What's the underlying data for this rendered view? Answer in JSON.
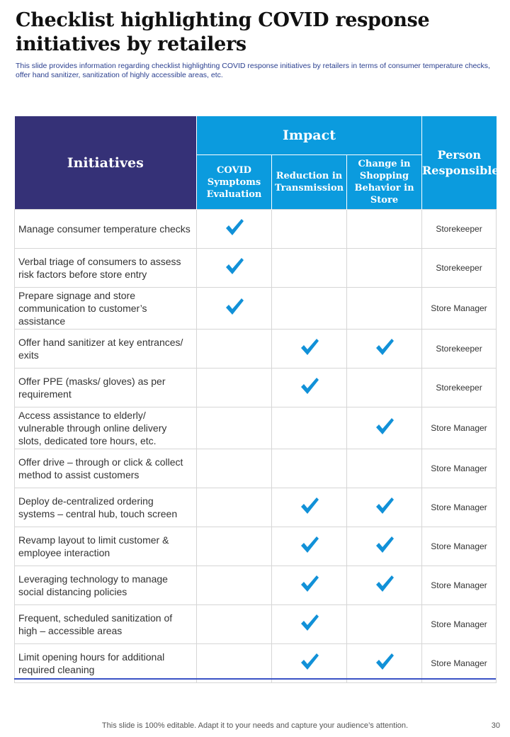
{
  "header": {
    "title": "Checklist highlighting COVID response initiatives by retailers",
    "subtitle": "This slide provides information regarding checklist highlighting COVID response initiatives by retailers in terms of consumer temperature checks, offer hand sanitizer, sanitization of highly accessible areas, etc."
  },
  "table": {
    "initiatives_header": "Initiatives",
    "impact_header": "Impact",
    "person_header": "Person Responsible",
    "impact_columns": [
      "COVID Symptoms Evaluation",
      "Reduction in Transmission",
      "Change in Shopping Behavior in Store"
    ],
    "rows": [
      {
        "initiative": "Manage consumer temperature checks",
        "checks": [
          true,
          false,
          false
        ],
        "person": "Storekeeper"
      },
      {
        "initiative": "Verbal triage of consumers to assess risk factors before store entry",
        "checks": [
          true,
          false,
          false
        ],
        "person": "Storekeeper"
      },
      {
        "initiative": "Prepare signage and store communication to customer’s assistance",
        "checks": [
          true,
          false,
          false
        ],
        "person": "Store Manager"
      },
      {
        "initiative": "Offer hand sanitizer at key entrances/ exits",
        "checks": [
          false,
          true,
          true
        ],
        "person": "Storekeeper"
      },
      {
        "initiative": "Offer PPE (masks/ gloves) as per requirement",
        "checks": [
          false,
          true,
          false
        ],
        "person": "Storekeeper"
      },
      {
        "initiative": "Access assistance to elderly/ vulnerable through online delivery slots, dedicated tore hours, etc.",
        "checks": [
          false,
          false,
          true
        ],
        "person": "Store Manager"
      },
      {
        "initiative": "Offer drive – through or click & collect method to assist customers",
        "checks": [
          false,
          false,
          false
        ],
        "person": "Store Manager"
      },
      {
        "initiative": "Deploy de-centralized ordering systems – central hub, touch screen",
        "checks": [
          false,
          true,
          true
        ],
        "person": "Store Manager"
      },
      {
        "initiative": "Revamp layout to limit customer & employee interaction",
        "checks": [
          false,
          true,
          true
        ],
        "person": "Store Manager"
      },
      {
        "initiative": "Leveraging technology to manage social distancing policies",
        "checks": [
          false,
          true,
          true
        ],
        "person": "Store Manager"
      },
      {
        "initiative": "Frequent, scheduled sanitization of high – accessible areas",
        "checks": [
          false,
          true,
          false
        ],
        "person": "Store Manager"
      },
      {
        "initiative": "Limit opening hours for additional required cleaning",
        "checks": [
          false,
          true,
          true
        ],
        "person": "Store Manager"
      }
    ]
  },
  "footer": {
    "note": "This slide is 100% editable. Adapt it to your needs and capture your audience’s attention.",
    "page_number": "30"
  },
  "colors": {
    "initiatives_header_bg": "#353177",
    "impact_header_bg": "#0b9bde",
    "check": "#1191d8"
  },
  "icons": {
    "check": "check-icon"
  }
}
